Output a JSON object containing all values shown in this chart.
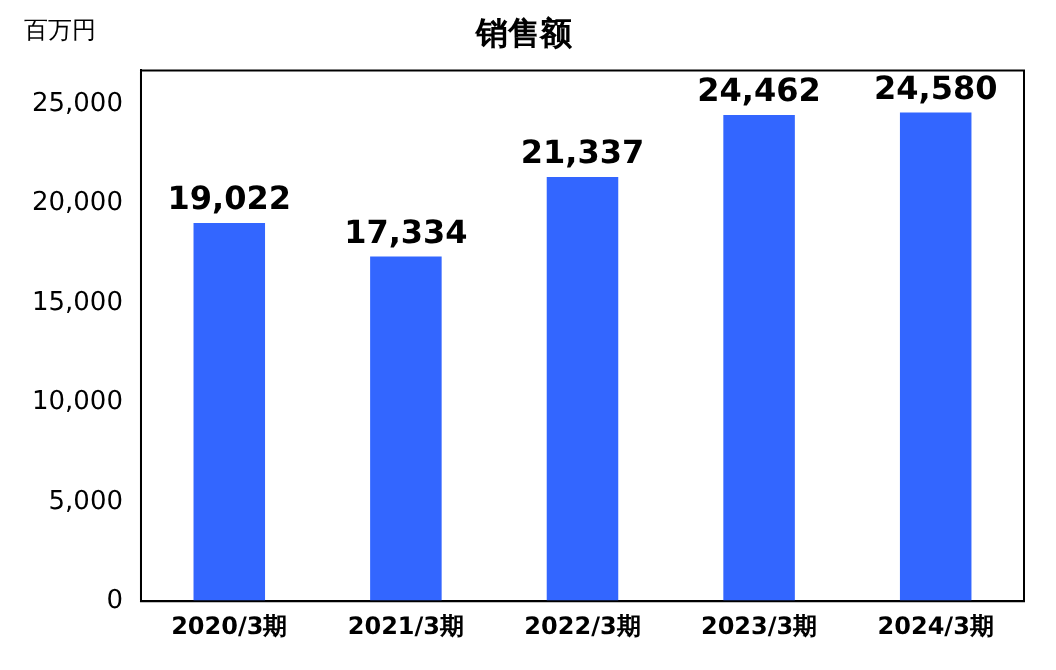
{
  "chart_data": {
    "type": "bar",
    "title": "销售额",
    "ylabel": "百万円",
    "categories": [
      "2020/3期",
      "2021/3期",
      "2022/3期",
      "2023/3期",
      "2024/3期"
    ],
    "values": [
      19022,
      17334,
      21337,
      24462,
      24580
    ],
    "value_labels": [
      "19,022",
      "17,334",
      "21,337",
      "24,462",
      "24,580"
    ],
    "color": "#3366ff",
    "ylim": [
      0,
      26700
    ],
    "yticks": [
      0,
      {
        "value": 5000,
        "label": "5,000"
      },
      {
        "value": 10000,
        "label": "10,000"
      },
      {
        "value": 15000,
        "label": "15,000"
      },
      {
        "value": 20000,
        "label": "20,000"
      },
      {
        "value": 25000,
        "label": "25,000"
      }
    ],
    "grid": false,
    "legend": false
  }
}
